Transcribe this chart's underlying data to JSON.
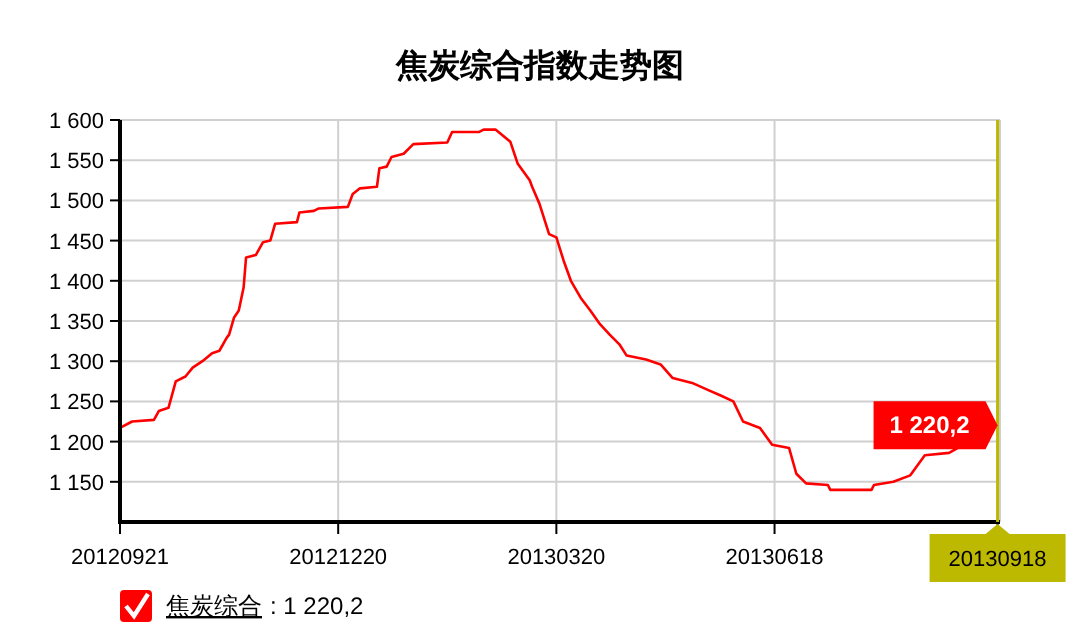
{
  "chart_data": {
    "type": "line",
    "title": "焦炭综合指数走势图",
    "xlim": [
      "2012-09-21",
      "2013-09-19"
    ],
    "xticks": [
      {
        "value": "2012-09-21",
        "label": "20120921"
      },
      {
        "value": "2012-12-20",
        "label": "20121220"
      },
      {
        "value": "2013-03-20",
        "label": "20130320"
      },
      {
        "value": "2013-06-18",
        "label": "20130618"
      },
      {
        "value": "2013-09-18",
        "label": null
      }
    ],
    "ylim": [
      1100,
      1600
    ],
    "yticks": [
      {
        "value": 1150,
        "label": "1 150"
      },
      {
        "value": 1200,
        "label": "1 200"
      },
      {
        "value": 1250,
        "label": "1 250"
      },
      {
        "value": 1300,
        "label": "1 300"
      },
      {
        "value": 1350,
        "label": "1 350"
      },
      {
        "value": 1400,
        "label": "1 400"
      },
      {
        "value": 1450,
        "label": "1 450"
      },
      {
        "value": 1500,
        "label": "1 500"
      },
      {
        "value": 1550,
        "label": "1 550"
      },
      {
        "value": 1600,
        "label": "1 600"
      }
    ],
    "grid": true,
    "legend": "bottom left",
    "marker": "none",
    "line_style": "solid",
    "ref_lines": [
      {
        "axis": "x",
        "value": "2013-09-18",
        "label": "20130918",
        "color": "#bdb800"
      }
    ],
    "annotations": [
      {
        "text": "1 220,2",
        "x": "2013-09-18",
        "y": 1220.2
      },
      ": 1 220,2"
    ],
    "series": [
      {
        "name": "焦炭综合",
        "color": "#ff0000",
        "x": [
          "2012-09-21",
          "2012-09-26",
          "2012-10-05",
          "2012-10-07",
          "2012-10-11",
          "2012-10-14",
          "2012-10-18",
          "2012-10-21",
          "2012-10-25",
          "2012-10-29",
          "2012-11-01",
          "2012-11-04",
          "2012-11-05",
          "2012-11-07",
          "2012-11-09",
          "2012-11-11",
          "2012-11-12",
          "2012-11-16",
          "2012-11-19",
          "2012-11-22",
          "2012-11-24",
          "2012-12-03",
          "2012-12-04",
          "2012-12-10",
          "2012-12-12",
          "2012-12-24",
          "2012-12-26",
          "2012-12-29",
          "2013-01-05",
          "2013-01-06",
          "2013-01-09",
          "2013-01-11",
          "2013-01-16",
          "2013-01-20",
          "2013-02-03",
          "2013-02-05",
          "2013-02-16",
          "2013-02-18",
          "2013-02-23",
          "2013-03-01",
          "2013-03-04",
          "2013-03-09",
          "2013-03-10",
          "2013-03-13",
          "2013-03-17",
          "2013-03-20",
          "2013-03-23",
          "2013-03-26",
          "2013-03-30",
          "2013-04-03",
          "2013-04-07",
          "2013-04-11",
          "2013-04-15",
          "2013-04-18",
          "2013-04-26",
          "2013-05-02",
          "2013-05-07",
          "2013-05-15",
          "2013-05-21",
          "2013-05-27",
          "2013-06-01",
          "2013-06-05",
          "2013-06-12",
          "2013-06-17",
          "2013-06-24",
          "2013-06-27",
          "2013-07-01",
          "2013-07-10",
          "2013-07-11",
          "2013-07-28",
          "2013-07-29",
          "2013-08-06",
          "2013-08-13",
          "2013-08-19",
          "2013-08-29",
          "2013-09-18"
        ],
        "values": [
          1217,
          1225,
          1227,
          1238,
          1242,
          1275,
          1281,
          1292,
          1300,
          1310,
          1313,
          1329,
          1333,
          1354,
          1363,
          1392,
          1429,
          1432,
          1448,
          1450,
          1471,
          1473,
          1485,
          1487,
          1490,
          1492,
          1508,
          1515,
          1517,
          1540,
          1542,
          1554,
          1558,
          1570,
          1572,
          1585,
          1585,
          1588,
          1588,
          1573,
          1546,
          1525,
          1517,
          1496,
          1458,
          1454,
          1425,
          1400,
          1379,
          1363,
          1346,
          1333,
          1321,
          1307,
          1302,
          1296,
          1279,
          1273,
          1265,
          1257,
          1250,
          1225,
          1217,
          1196,
          1192,
          1160,
          1148,
          1146,
          1140,
          1140,
          1146,
          1150,
          1158,
          1183,
          1186,
          1220.2
        ]
      }
    ]
  }
}
